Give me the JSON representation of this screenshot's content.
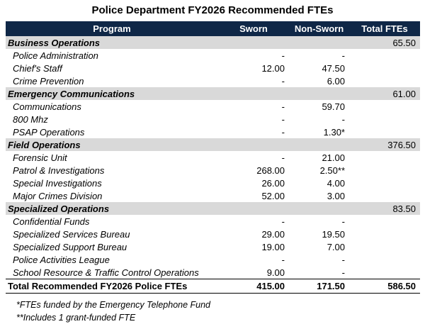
{
  "title": "Police Department FY2026 Recommended FTEs",
  "columns": {
    "program": "Program",
    "sworn": "Sworn",
    "non_sworn": "Non-Sworn",
    "total": "Total FTEs"
  },
  "rows": [
    {
      "type": "section",
      "name": "Business Operations",
      "sworn": "",
      "non_sworn": "",
      "total": "65.50"
    },
    {
      "type": "item",
      "name": "Police Administration",
      "sworn": "-",
      "non_sworn": "-",
      "total": ""
    },
    {
      "type": "item",
      "name": "Chief's Staff",
      "sworn": "12.00",
      "non_sworn": "47.50",
      "total": ""
    },
    {
      "type": "item",
      "name": "Crime Prevention",
      "sworn": "-",
      "non_sworn": "6.00",
      "total": ""
    },
    {
      "type": "section",
      "name": "Emergency Communications",
      "sworn": "",
      "non_sworn": "",
      "total": "61.00"
    },
    {
      "type": "item",
      "name": "Communications",
      "sworn": "-",
      "non_sworn": "59.70",
      "total": ""
    },
    {
      "type": "item",
      "name": "800 Mhz",
      "sworn": "-",
      "non_sworn": "-",
      "total": ""
    },
    {
      "type": "item",
      "name": "PSAP Operations",
      "sworn": "-",
      "non_sworn": "1.30*",
      "total": ""
    },
    {
      "type": "section",
      "name": "Field Operations",
      "sworn": "",
      "non_sworn": "",
      "total": "376.50"
    },
    {
      "type": "item",
      "name": "Forensic Unit",
      "sworn": "-",
      "non_sworn": "21.00",
      "total": ""
    },
    {
      "type": "item",
      "name": "Patrol & Investigations",
      "sworn": "268.00",
      "non_sworn": "2.50**",
      "total": ""
    },
    {
      "type": "item",
      "name": "Special Investigations",
      "sworn": "26.00",
      "non_sworn": "4.00",
      "total": ""
    },
    {
      "type": "item",
      "name": "Major Crimes Division",
      "sworn": "52.00",
      "non_sworn": "3.00",
      "total": ""
    },
    {
      "type": "section",
      "name": "Specialized Operations",
      "sworn": "",
      "non_sworn": "",
      "total": "83.50"
    },
    {
      "type": "item",
      "name": "Confidential Funds",
      "sworn": "-",
      "non_sworn": "-",
      "total": ""
    },
    {
      "type": "item",
      "name": "Specialized Services Bureau",
      "sworn": "29.00",
      "non_sworn": "19.50",
      "total": ""
    },
    {
      "type": "item",
      "name": "Specialized Support Bureau",
      "sworn": "19.00",
      "non_sworn": "7.00",
      "total": ""
    },
    {
      "type": "item",
      "name": "Police Activities League",
      "sworn": "-",
      "non_sworn": "-",
      "total": ""
    },
    {
      "type": "item",
      "name": "School Resource & Traffic Control Operations",
      "sworn": "9.00",
      "non_sworn": "-",
      "total": ""
    }
  ],
  "total_row": {
    "name": "Total Recommended FY2026 Police FTEs",
    "sworn": "415.00",
    "non_sworn": "171.50",
    "total": "586.50"
  },
  "footnotes": [
    "*FTEs funded by the Emergency Telephone Fund",
    "**Includes 1 grant-funded FTE"
  ],
  "colors": {
    "header_bg": "#0f2747",
    "section_bg": "#d9d9d9"
  }
}
